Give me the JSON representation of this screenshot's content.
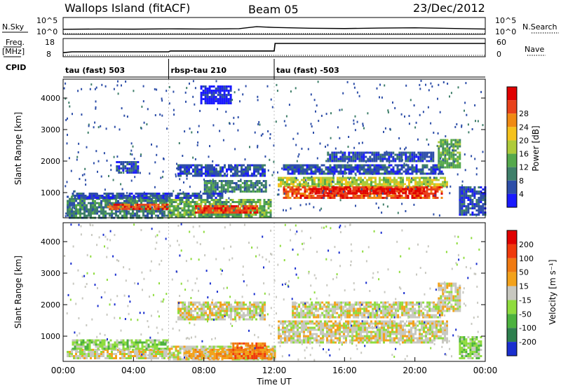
{
  "header": {
    "station": "Wallops Island (fitACF)",
    "beam": "Beam 05",
    "date": "23/Dec/2012"
  },
  "chart_data": [
    {
      "type": "line",
      "panel": "noise",
      "left_label": "N.Sky",
      "right_label": "N.Search",
      "left_ticks": [
        "10^5",
        "10^0"
      ],
      "right_ticks": [
        "10^5",
        "10^0"
      ],
      "series": [
        {
          "name": "N.Sky",
          "style": "solid",
          "x": [
            0,
            2,
            4,
            6,
            8,
            10,
            11,
            12,
            14,
            16,
            18,
            20,
            22,
            24
          ],
          "y_frac": [
            0.28,
            0.3,
            0.29,
            0.31,
            0.3,
            0.32,
            0.45,
            0.4,
            0.35,
            0.33,
            0.36,
            0.38,
            0.34,
            0.3
          ]
        },
        {
          "name": "N.Search",
          "style": "dotted",
          "x": [
            0,
            24
          ],
          "y_frac": [
            0.0,
            0.0
          ]
        }
      ]
    },
    {
      "type": "line",
      "panel": "frequency",
      "left_label": "Freq.",
      "left_unit": "[MHz]",
      "right_label": "Nave",
      "left_ticks": [
        "18",
        "8"
      ],
      "right_ticks": [
        "60",
        "0"
      ],
      "ylim": [
        8,
        18
      ],
      "series": [
        {
          "name": "Freq.",
          "style": "solid",
          "x": [
            0,
            0.5,
            6,
            6.1,
            12,
            12.05,
            24
          ],
          "y": [
            10.0,
            10.5,
            10.5,
            11.0,
            11.0,
            15.5,
            15.5
          ]
        },
        {
          "name": "Nave",
          "style": "dotted",
          "x": [
            0,
            24
          ],
          "y": [
            2,
            2
          ]
        }
      ]
    },
    {
      "type": "table",
      "panel": "cpid",
      "label": "CPID",
      "segments": [
        {
          "start_h": 0,
          "end_h": 6,
          "name": "tau (fast) 503"
        },
        {
          "start_h": 6,
          "end_h": 12,
          "name": "rbsp-tau 210"
        },
        {
          "start_h": 12,
          "end_h": 24,
          "name": "tau (fast) -503"
        }
      ]
    },
    {
      "type": "heatmap",
      "panel": "power",
      "ylabel": "Slant Range [km]",
      "yticks": [
        1000,
        2000,
        3000,
        4000
      ],
      "ylim": [
        200,
        4600
      ],
      "xlim": [
        0,
        24
      ],
      "colorbar": {
        "label": "Power [dB]",
        "ticks": [
          "4",
          "8",
          "12",
          "16",
          "20",
          "24",
          "28"
        ],
        "colors": [
          "#1a1aff",
          "#2d4ea8",
          "#3f7f6a",
          "#55a94c",
          "#aecb3a",
          "#f5c21d",
          "#f08a14",
          "#e8421b",
          "#e00000"
        ]
      },
      "patches": [
        {
          "t0": 0.2,
          "t1": 6.0,
          "r0": 200,
          "r1": 900,
          "lvl": 2
        },
        {
          "t0": 2.5,
          "t1": 6.0,
          "r0": 450,
          "r1": 650,
          "lvl": 7
        },
        {
          "t0": 6.0,
          "t1": 11.8,
          "r0": 250,
          "r1": 800,
          "lvl": 3
        },
        {
          "t0": 7.5,
          "t1": 11.0,
          "r0": 350,
          "r1": 600,
          "lvl": 7
        },
        {
          "t0": 0.5,
          "t1": 9.0,
          "r0": 800,
          "r1": 1000,
          "lvl": 1
        },
        {
          "t0": 6.5,
          "t1": 11.5,
          "r0": 1500,
          "r1": 1900,
          "lvl": 1
        },
        {
          "t0": 8.0,
          "t1": 11.5,
          "r0": 1000,
          "r1": 1400,
          "lvl": 2
        },
        {
          "t0": 3.0,
          "t1": 4.2,
          "r0": 1600,
          "r1": 2000,
          "lvl": 1
        },
        {
          "t0": 12.2,
          "t1": 21.8,
          "r0": 1200,
          "r1": 1500,
          "lvl": 4
        },
        {
          "t0": 12.5,
          "t1": 21.5,
          "r0": 850,
          "r1": 1200,
          "lvl": 7
        },
        {
          "t0": 14.0,
          "t1": 20.5,
          "r0": 950,
          "r1": 1150,
          "lvl": 8
        },
        {
          "t0": 12.5,
          "t1": 21.5,
          "r0": 1600,
          "r1": 1900,
          "lvl": 1
        },
        {
          "t0": 15.0,
          "t1": 21.0,
          "r0": 2000,
          "r1": 2300,
          "lvl": 1
        },
        {
          "t0": 21.3,
          "t1": 22.5,
          "r0": 1800,
          "r1": 2700,
          "lvl": 3
        },
        {
          "t0": 22.5,
          "t1": 24.0,
          "r0": 300,
          "r1": 1200,
          "lvl": 1
        },
        {
          "t0": 7.8,
          "t1": 9.5,
          "r0": 3800,
          "r1": 4400,
          "lvl": 0
        }
      ]
    },
    {
      "type": "heatmap",
      "panel": "velocity",
      "ylabel": "Slant Range [km]",
      "yticks": [
        1000,
        2000,
        3000,
        4000
      ],
      "ylim": [
        200,
        4600
      ],
      "xlim": [
        0,
        24
      ],
      "xticks": [
        "00:00",
        "04:00",
        "08:00",
        "12:00",
        "16:00",
        "20:00",
        "00:00"
      ],
      "xlabel": "Time UT",
      "colorbar": {
        "label": "Velocity [m s⁻¹]",
        "ticks": [
          "200",
          "100",
          "50",
          "15",
          "-15",
          "-50",
          "-100",
          "-200"
        ],
        "colors": [
          "#1a2fcf",
          "#2e7f4e",
          "#4cb23e",
          "#8fdc3e",
          "#c8c8c0",
          "#f3a21b",
          "#f07a12",
          "#f03a0c",
          "#e00000"
        ]
      },
      "patches": [
        {
          "t0": 0.2,
          "t1": 6.0,
          "r0": 300,
          "r1": 600,
          "lvl": 4
        },
        {
          "t0": 0.5,
          "t1": 6.0,
          "r0": 600,
          "r1": 900,
          "lvl": 3
        },
        {
          "t0": 6.0,
          "t1": 12.0,
          "r0": 250,
          "r1": 700,
          "lvl": 4
        },
        {
          "t0": 7.0,
          "t1": 11.8,
          "r0": 300,
          "r1": 600,
          "lvl": 5
        },
        {
          "t0": 9.5,
          "t1": 11.5,
          "r0": 300,
          "r1": 800,
          "lvl": 6
        },
        {
          "t0": 6.5,
          "t1": 11.5,
          "r0": 1500,
          "r1": 2100,
          "lvl": 4
        },
        {
          "t0": 12.2,
          "t1": 21.8,
          "r0": 800,
          "r1": 1500,
          "lvl": 4
        },
        {
          "t0": 13.0,
          "t1": 21.5,
          "r0": 1600,
          "r1": 2100,
          "lvl": 4
        },
        {
          "t0": 21.3,
          "t1": 22.5,
          "r0": 1800,
          "r1": 2700,
          "lvl": 4
        },
        {
          "t0": 22.5,
          "t1": 23.8,
          "r0": 300,
          "r1": 1000,
          "lvl": 3
        }
      ]
    }
  ]
}
